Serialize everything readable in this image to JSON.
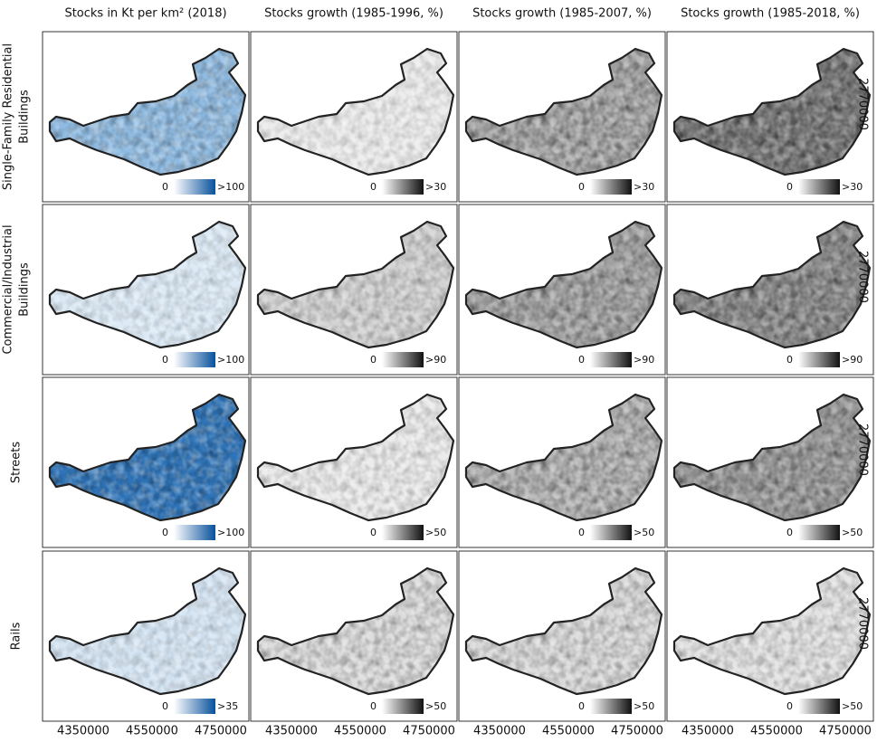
{
  "columns": [
    "Stocks in Kt per km² (2018)",
    "Stocks growth (1985-1996, %)",
    "Stocks growth (1985-2007, %)",
    "Stocks growth (1985-2018, %)"
  ],
  "rows": [
    {
      "label_lines": [
        "Single-Family Residential",
        "Buildings"
      ],
      "legends": [
        {
          "min": 0,
          "max": ">100"
        },
        {
          "min": 0,
          "max": ">30"
        },
        {
          "min": 0,
          "max": ">30"
        },
        {
          "min": 0,
          "max": ">30"
        }
      ]
    },
    {
      "label_lines": [
        "Commercial/Industrial",
        "Buildings"
      ],
      "legends": [
        {
          "min": 0,
          "max": ">100"
        },
        {
          "min": 0,
          "max": ">90"
        },
        {
          "min": 0,
          "max": ">90"
        },
        {
          "min": 0,
          "max": ">90"
        }
      ]
    },
    {
      "label_lines": [
        "Streets"
      ],
      "legends": [
        {
          "min": 0,
          "max": ">100"
        },
        {
          "min": 0,
          "max": ">50"
        },
        {
          "min": 0,
          "max": ">50"
        },
        {
          "min": 0,
          "max": ">50"
        }
      ]
    },
    {
      "label_lines": [
        "Rails"
      ],
      "legends": [
        {
          "min": 0,
          "max": ">35"
        },
        {
          "min": 0,
          "max": ">50"
        },
        {
          "min": 0,
          "max": ">50"
        },
        {
          "min": 0,
          "max": ">50"
        }
      ]
    }
  ],
  "x_ticks": [
    4350000,
    4550000,
    4750000
  ],
  "y_tick": 2770000
}
